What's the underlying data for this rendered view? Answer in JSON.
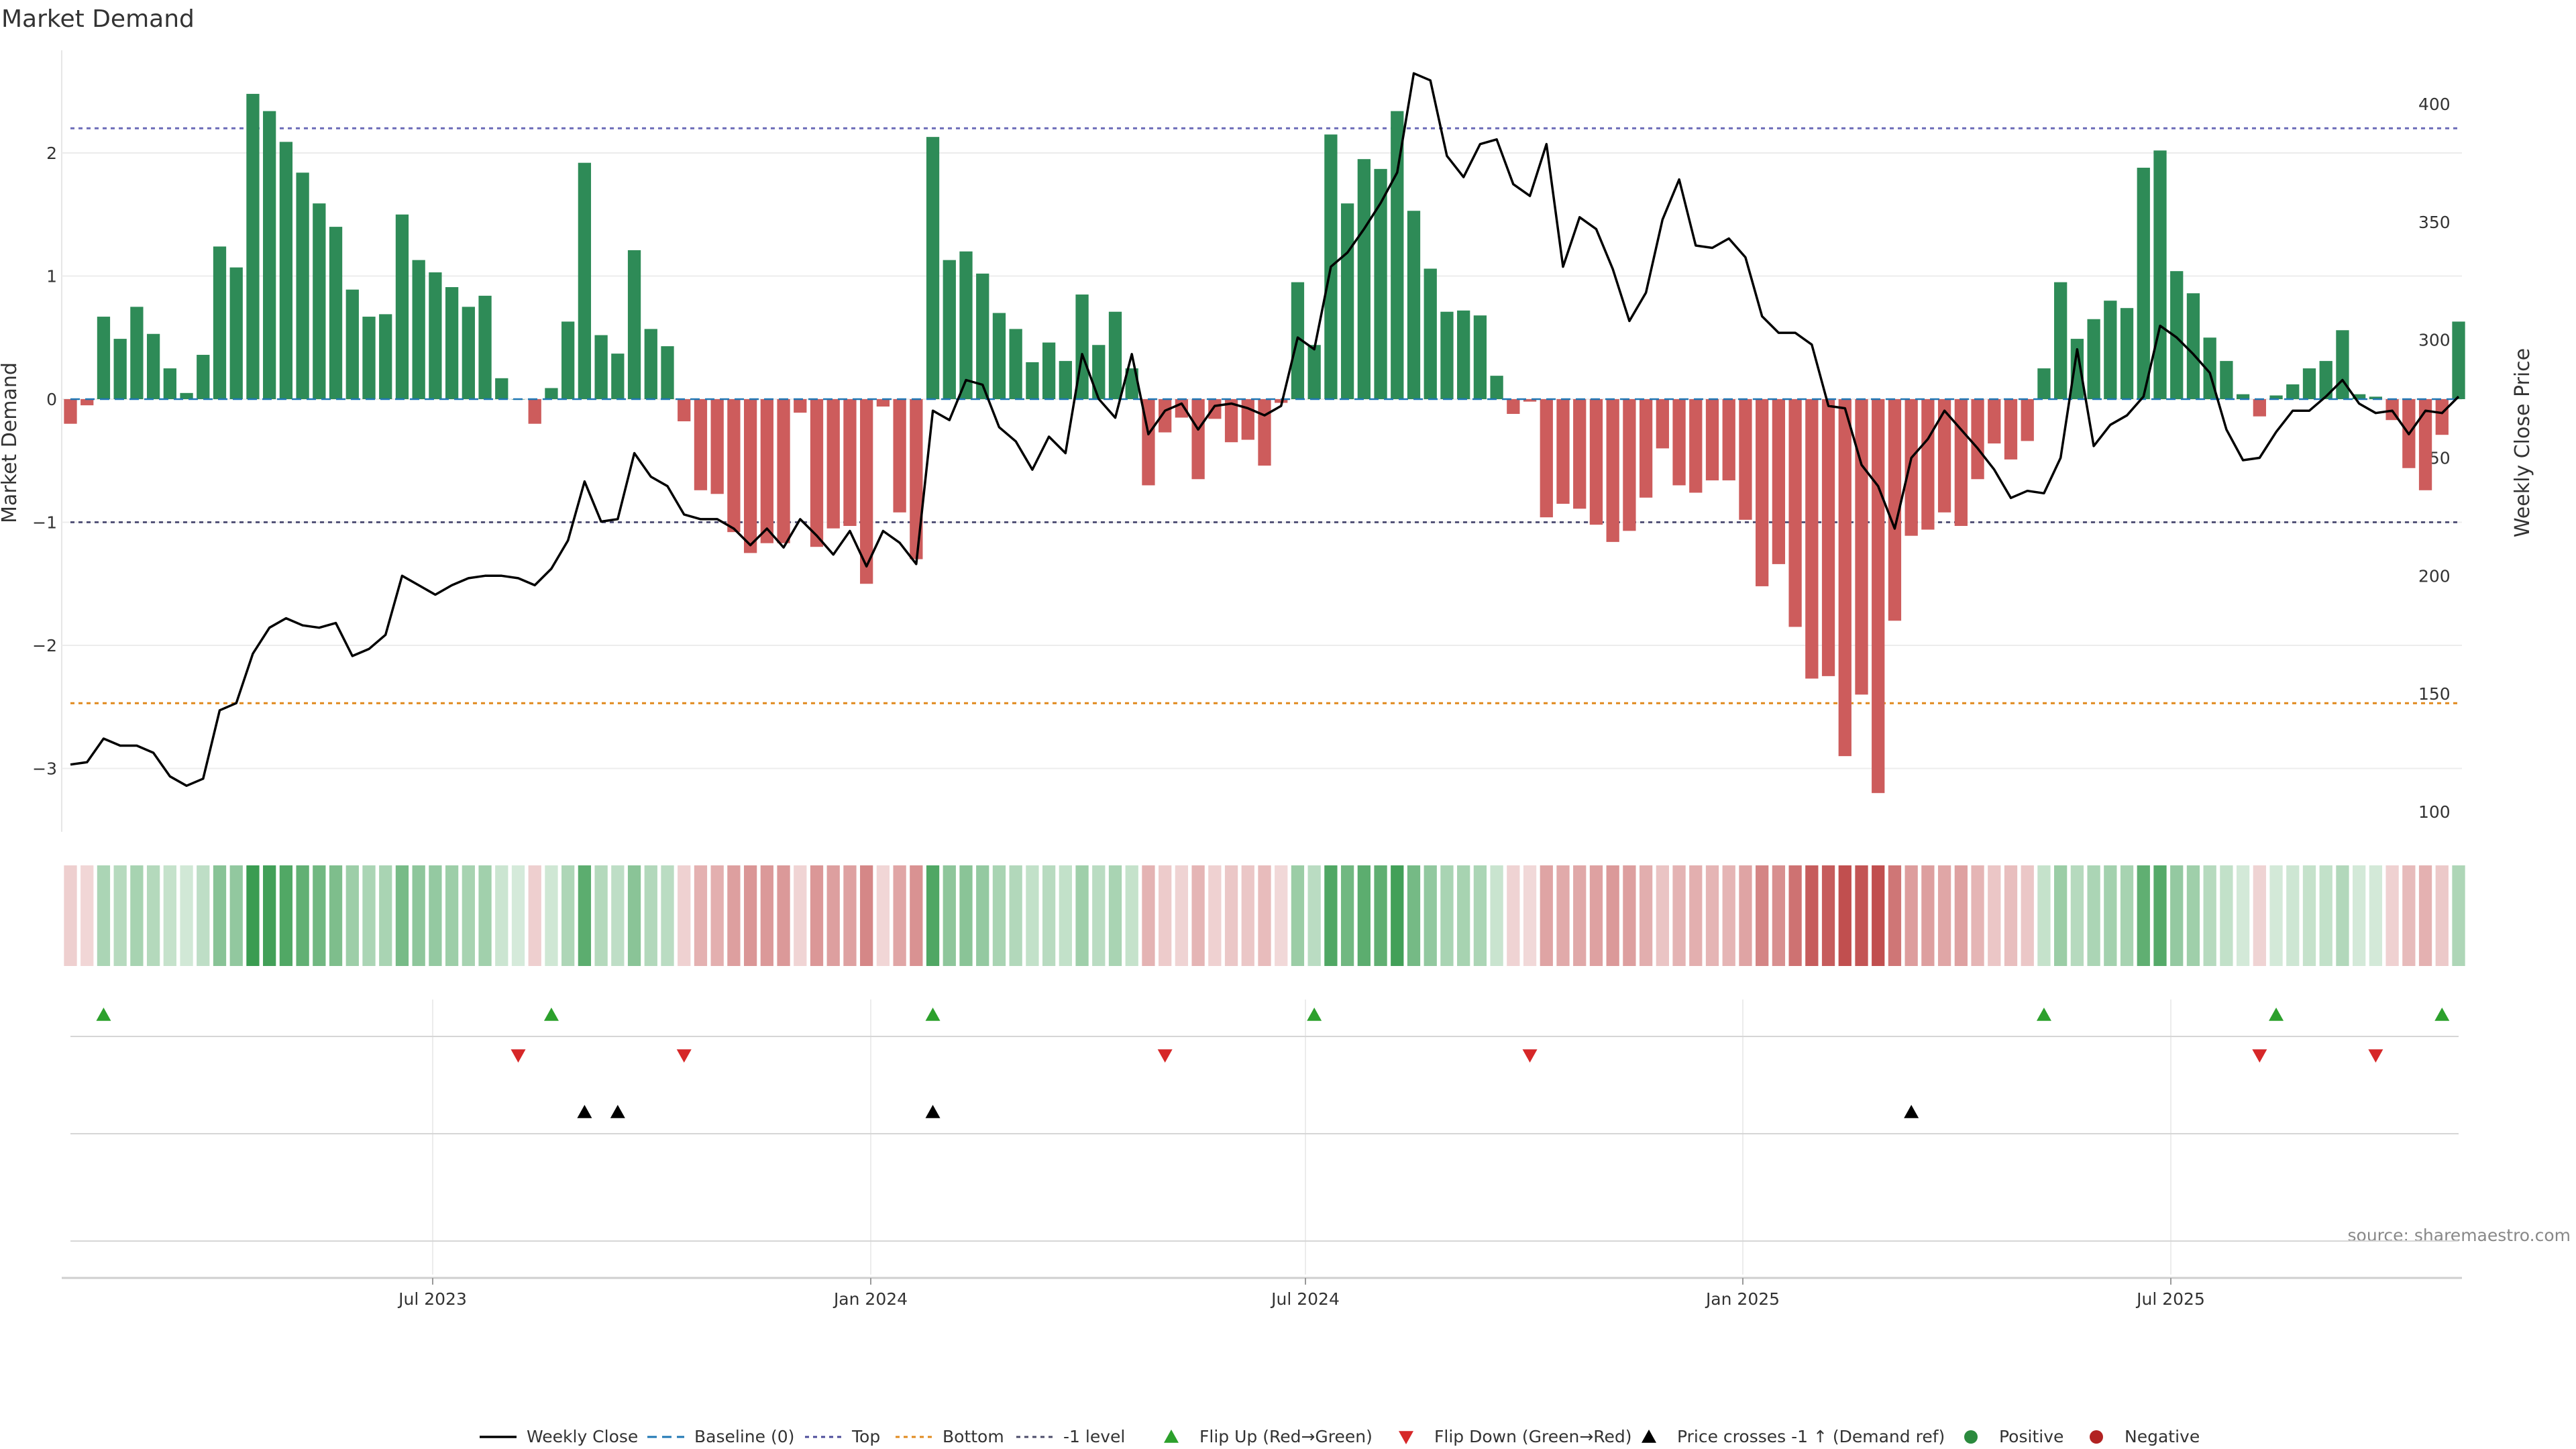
{
  "chart_data": {
    "type": "bar",
    "title": "Market Demand",
    "ylabel": "Market Demand",
    "y2label": "Weekly Close Price",
    "ylim": [
      -3.5,
      2.7
    ],
    "y2lim": [
      90,
      420
    ],
    "yticks": [
      "2",
      "1",
      "0",
      "−1",
      "−2",
      "−3"
    ],
    "y2ticks": [
      "400",
      "350",
      "300",
      "250",
      "200",
      "150",
      "100"
    ],
    "xticks": [
      "Jul 2023",
      "Jan 2024",
      "Jul 2024",
      "Jan 2025",
      "Jul 2025"
    ],
    "grid": true,
    "legend_position": "bottom",
    "reference_lines": {
      "top": 2.2,
      "baseline": 0,
      "minus_one": -1,
      "bottom": -2.47
    },
    "weeks": 145,
    "demand": [
      -0.2,
      -0.05,
      0.67,
      0.49,
      0.75,
      0.53,
      0.25,
      0.05,
      0.36,
      1.24,
      1.07,
      2.48,
      2.34,
      2.09,
      1.84,
      1.59,
      1.4,
      0.89,
      0.67,
      0.69,
      1.5,
      1.13,
      1.03,
      0.91,
      0.75,
      0.84,
      0.17,
      0,
      -0.2,
      0.09,
      0.63,
      1.92,
      0.52,
      0.37,
      1.21,
      0.57,
      0.43,
      -0.18,
      -0.74,
      -0.77,
      -1.08,
      -1.25,
      -1.17,
      -1.17,
      -0.11,
      -1.2,
      -1.05,
      -1.03,
      -1.5,
      -0.06,
      -0.92,
      -1.3,
      2.13,
      1.13,
      1.2,
      1.02,
      0.7,
      0.57,
      0.3,
      0.46,
      0.31,
      0.85,
      0.44,
      0.71,
      0.25,
      -0.7,
      -0.27,
      -0.15,
      -0.65,
      -0.16,
      -0.35,
      -0.33,
      -0.54,
      -0.03,
      0.95,
      0.44,
      2.15,
      1.59,
      1.95,
      1.87,
      2.34,
      1.53,
      1.06,
      0.71,
      0.72,
      0.68,
      0.19,
      -0.12,
      -0.02,
      -0.96,
      -0.85,
      -0.89,
      -1.02,
      -1.16,
      -1.07,
      -0.8,
      -0.4,
      -0.7,
      -0.76,
      -0.66,
      -0.66,
      -0.98,
      -1.52,
      -1.34,
      -1.85,
      -2.27,
      -2.25,
      -2.9,
      -2.4,
      -3.2,
      -1.8,
      -1.11,
      -1.06,
      -0.92,
      -1.03,
      -0.65,
      -0.36,
      -0.49,
      -0.34,
      0.25,
      0.95,
      0.49,
      0.65,
      0.8,
      0.74,
      1.88,
      2.02,
      1.04,
      0.86,
      0.5,
      0.31,
      0.04,
      -0.14,
      0.03,
      0.12,
      0.25,
      0.31,
      0.56,
      0.04,
      0.02,
      -0.17,
      -0.56,
      -0.74,
      -0.29,
      0.63
    ],
    "weekly_close": [
      120,
      121,
      131,
      128,
      128,
      125,
      115,
      111,
      114,
      143,
      146,
      167,
      178,
      182,
      179,
      178,
      180,
      166,
      169,
      175,
      200,
      196,
      192,
      196,
      199,
      200,
      200,
      199,
      196,
      203,
      215,
      240,
      223,
      224,
      252,
      242,
      238,
      226,
      224,
      224,
      220,
      213,
      220,
      212,
      224,
      217,
      209,
      219,
      204,
      219,
      214,
      205,
      270,
      266,
      283,
      281,
      263,
      257,
      245,
      259,
      252,
      294,
      275,
      267,
      294,
      260,
      270,
      273,
      262,
      272,
      273,
      271,
      268,
      272,
      301,
      296,
      331,
      337,
      347,
      358,
      371,
      413,
      410,
      378,
      369,
      383,
      385,
      366,
      361,
      383,
      331,
      352,
      347,
      330,
      308,
      320,
      351,
      368,
      340,
      339,
      343,
      335,
      310,
      303,
      303,
      298,
      272,
      271,
      247,
      238,
      220,
      250,
      258,
      270,
      262,
      254,
      245,
      233,
      236,
      235,
      250,
      296,
      255,
      264,
      268,
      276,
      306,
      301,
      294,
      286,
      262,
      249,
      250,
      261,
      270,
      270,
      276,
      283,
      273,
      269,
      270,
      260,
      270,
      269,
      276
    ],
    "series": [
      {
        "name": "Weekly Close",
        "color": "#000000"
      },
      {
        "name": "Baseline (0)",
        "color": "#1f77b4"
      },
      {
        "name": "Top",
        "color": "#4c4c9a"
      },
      {
        "name": "Bottom",
        "color": "#e08a1e"
      },
      {
        "name": "-1 level",
        "color": "#4c4c6a"
      },
      {
        "name": "Flip Up (Red→Green)",
        "color": "#2ca02c"
      },
      {
        "name": "Flip Down (Green→Red)",
        "color": "#d62728"
      },
      {
        "name": "Price crosses -1 ↑ (Demand ref)",
        "color": "#000000"
      },
      {
        "name": "Positive",
        "color": "#2b8a3e"
      },
      {
        "name": "Negative",
        "color": "#b22222"
      }
    ],
    "flip_up_weeks": [
      2,
      29,
      52,
      75,
      119,
      133,
      143
    ],
    "flip_down_weeks": [
      27,
      37,
      66,
      88,
      132,
      139
    ],
    "price_cross_weeks": [
      31,
      33,
      52,
      111
    ],
    "colors": {
      "positive_bar": "#2e8b57",
      "negative_bar": "#cd5c5c"
    }
  },
  "source": "source: sharemaestro.com"
}
